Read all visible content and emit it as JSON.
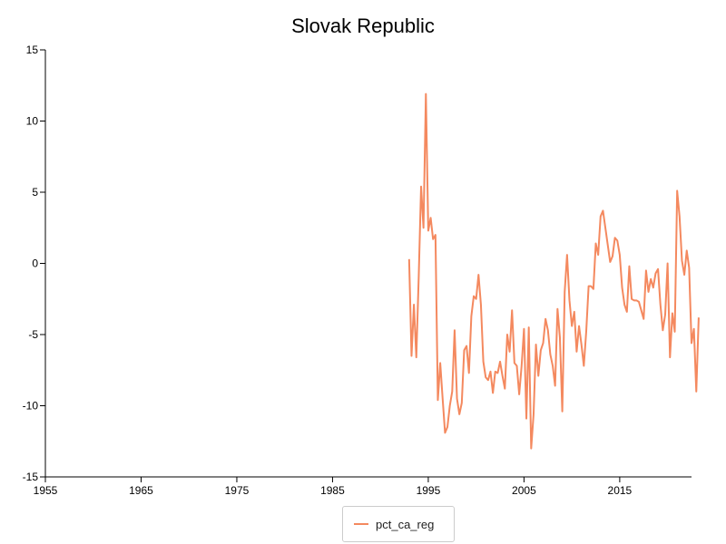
{
  "chart_data": {
    "type": "line",
    "title": "Slovak Republic",
    "xlabel": "",
    "ylabel": "",
    "xlim": [
      1955,
      2022
    ],
    "ylim": [
      -15,
      15
    ],
    "x_ticks": [
      1955,
      1965,
      1975,
      1985,
      1995,
      2005,
      2015
    ],
    "y_ticks": [
      15,
      10,
      5,
      0,
      -5,
      -10,
      -15
    ],
    "legend_position": "bottom-center",
    "grid": false,
    "series": [
      {
        "name": "pct_ca_reg",
        "color": "#f4895f",
        "points": [
          [
            1993.0,
            0.3
          ],
          [
            1993.25,
            -6.5
          ],
          [
            1993.5,
            -2.9
          ],
          [
            1993.75,
            -6.6
          ],
          [
            1994.0,
            -1.0
          ],
          [
            1994.25,
            5.4
          ],
          [
            1994.5,
            2.5
          ],
          [
            1994.75,
            11.9
          ],
          [
            1995.0,
            2.3
          ],
          [
            1995.25,
            3.2
          ],
          [
            1995.5,
            1.7
          ],
          [
            1995.75,
            2.0
          ],
          [
            1996.0,
            -9.6
          ],
          [
            1996.25,
            -7.0
          ],
          [
            1996.5,
            -9.5
          ],
          [
            1996.75,
            -11.9
          ],
          [
            1997.0,
            -11.5
          ],
          [
            1997.25,
            -10.0
          ],
          [
            1997.5,
            -9.0
          ],
          [
            1997.75,
            -4.7
          ],
          [
            1998.0,
            -9.5
          ],
          [
            1998.25,
            -10.6
          ],
          [
            1998.5,
            -9.8
          ],
          [
            1998.75,
            -6.1
          ],
          [
            1999.0,
            -5.8
          ],
          [
            1999.25,
            -7.7
          ],
          [
            1999.5,
            -3.7
          ],
          [
            1999.75,
            -2.3
          ],
          [
            2000.0,
            -2.5
          ],
          [
            2000.25,
            -0.8
          ],
          [
            2000.5,
            -2.9
          ],
          [
            2000.75,
            -6.9
          ],
          [
            2001.0,
            -8.0
          ],
          [
            2001.25,
            -8.2
          ],
          [
            2001.5,
            -7.6
          ],
          [
            2001.75,
            -9.1
          ],
          [
            2002.0,
            -7.6
          ],
          [
            2002.25,
            -7.7
          ],
          [
            2002.5,
            -6.9
          ],
          [
            2002.75,
            -7.9
          ],
          [
            2003.0,
            -8.8
          ],
          [
            2003.25,
            -5.0
          ],
          [
            2003.5,
            -6.2
          ],
          [
            2003.75,
            -3.3
          ],
          [
            2004.0,
            -7.0
          ],
          [
            2004.25,
            -7.2
          ],
          [
            2004.5,
            -9.2
          ],
          [
            2004.75,
            -7.2
          ],
          [
            2005.0,
            -4.6
          ],
          [
            2005.25,
            -10.9
          ],
          [
            2005.5,
            -4.5
          ],
          [
            2005.75,
            -13.0
          ],
          [
            2006.0,
            -10.6
          ],
          [
            2006.25,
            -5.7
          ],
          [
            2006.5,
            -7.9
          ],
          [
            2006.75,
            -6.1
          ],
          [
            2007.0,
            -5.6
          ],
          [
            2007.25,
            -3.9
          ],
          [
            2007.5,
            -4.7
          ],
          [
            2007.75,
            -6.4
          ],
          [
            2008.0,
            -7.2
          ],
          [
            2008.25,
            -8.6
          ],
          [
            2008.5,
            -3.2
          ],
          [
            2008.75,
            -5.2
          ],
          [
            2009.0,
            -10.4
          ],
          [
            2009.25,
            -2.0
          ],
          [
            2009.5,
            0.6
          ],
          [
            2009.75,
            -2.6
          ],
          [
            2010.0,
            -4.4
          ],
          [
            2010.25,
            -3.4
          ],
          [
            2010.5,
            -6.2
          ],
          [
            2010.75,
            -4.4
          ],
          [
            2011.0,
            -5.7
          ],
          [
            2011.25,
            -7.2
          ],
          [
            2011.5,
            -4.8
          ],
          [
            2011.75,
            -1.6
          ],
          [
            2012.0,
            -1.6
          ],
          [
            2012.25,
            -1.8
          ],
          [
            2012.5,
            1.4
          ],
          [
            2012.75,
            0.6
          ],
          [
            2013.0,
            3.3
          ],
          [
            2013.25,
            3.7
          ],
          [
            2013.5,
            2.5
          ],
          [
            2013.75,
            1.3
          ],
          [
            2014.0,
            0.1
          ],
          [
            2014.25,
            0.5
          ],
          [
            2014.5,
            1.8
          ],
          [
            2014.75,
            1.6
          ],
          [
            2015.0,
            0.6
          ],
          [
            2015.25,
            -1.7
          ],
          [
            2015.5,
            -2.9
          ],
          [
            2015.75,
            -3.4
          ],
          [
            2016.0,
            -0.2
          ],
          [
            2016.25,
            -2.5
          ],
          [
            2016.5,
            -2.6
          ],
          [
            2016.75,
            -2.6
          ],
          [
            2017.0,
            -2.7
          ],
          [
            2017.25,
            -3.3
          ],
          [
            2017.5,
            -3.9
          ],
          [
            2017.75,
            -0.5
          ],
          [
            2018.0,
            -2.0
          ],
          [
            2018.25,
            -1.1
          ],
          [
            2018.5,
            -1.7
          ],
          [
            2018.75,
            -0.7
          ],
          [
            2019.0,
            -0.4
          ],
          [
            2019.25,
            -2.9
          ],
          [
            2019.5,
            -4.7
          ],
          [
            2019.75,
            -3.6
          ],
          [
            2020.0,
            0.0
          ],
          [
            2020.25,
            -6.6
          ],
          [
            2020.5,
            -3.5
          ],
          [
            2020.75,
            -4.8
          ],
          [
            2021.0,
            5.1
          ],
          [
            2021.25,
            3.3
          ],
          [
            2021.5,
            0.2
          ],
          [
            2021.75,
            -0.8
          ],
          [
            2022.0,
            0.9
          ],
          [
            2022.25,
            -0.3
          ],
          [
            2022.5,
            -5.6
          ],
          [
            2022.75,
            -4.6
          ],
          [
            2023.0,
            -9.0
          ],
          [
            2023.25,
            -3.8
          ]
        ]
      }
    ]
  }
}
